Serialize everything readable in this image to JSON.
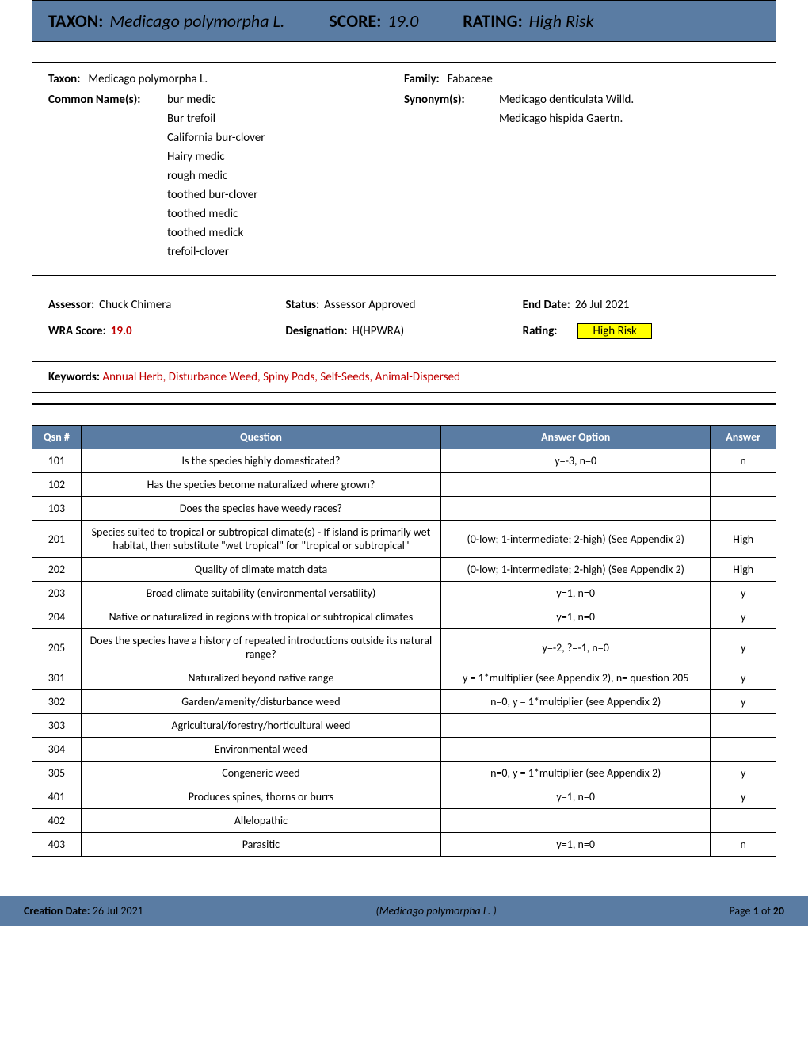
{
  "header": {
    "taxon_label": "TAXON:",
    "taxon_value": "Medicago polymorpha L.",
    "score_label": "SCORE:",
    "score_value": "19.0",
    "rating_label": "RATING:",
    "rating_value": "High Risk"
  },
  "info": {
    "taxon_label": "Taxon:",
    "taxon_value": "Medicago polymorpha L.",
    "family_label": "Family:",
    "family_value": "Fabaceae",
    "common_label": "Common Name(s):",
    "common_names": [
      "bur medic",
      "Bur trefoil",
      "California bur-clover",
      "Hairy medic",
      "rough medic",
      "toothed bur-clover",
      "toothed medic",
      "toothed medick",
      "trefoil-clover"
    ],
    "synonym_label": "Synonym(s):",
    "synonyms": [
      "Medicago denticulata Willd.",
      "Medicago hispida Gaertn."
    ]
  },
  "assess": {
    "assessor_label": "Assessor:",
    "assessor_value": "Chuck Chimera",
    "status_label": "Status:",
    "status_value": "Assessor Approved",
    "end_date_label": "End Date:",
    "end_date_value": "26 Jul 2021",
    "wra_label": "WRA Score:",
    "wra_value": "19.0",
    "designation_label": "Designation:",
    "designation_value": "H(HPWRA)",
    "rating_label": "Rating:",
    "rating_value": "High Risk"
  },
  "keywords": {
    "label": "Keywords:",
    "value": "Annual Herb, Disturbance Weed, Spiny Pods, Self-Seeds, Animal-Dispersed"
  },
  "table": {
    "headers": {
      "qsn": "Qsn #",
      "question": "Question",
      "option": "Answer Option",
      "answer": "Answer"
    },
    "col_widths": {
      "qsn": "60px",
      "question": "420px",
      "option": "330px",
      "answer": "80px"
    },
    "rows": [
      {
        "qsn": "101",
        "question": "Is the species highly domesticated?",
        "option": "y=-3, n=0",
        "answer": "n"
      },
      {
        "qsn": "102",
        "question": "Has the species become naturalized where grown?",
        "option": "",
        "answer": ""
      },
      {
        "qsn": "103",
        "question": "Does the species have weedy races?",
        "option": "",
        "answer": ""
      },
      {
        "qsn": "201",
        "question": "Species suited to tropical or subtropical climate(s) - If island is primarily wet habitat, then substitute \"wet tropical\" for \"tropical or subtropical\"",
        "option": "(0-low; 1-intermediate; 2-high)  (See Appendix 2)",
        "answer": "High"
      },
      {
        "qsn": "202",
        "question": "Quality of climate match data",
        "option": "(0-low; 1-intermediate; 2-high)  (See Appendix 2)",
        "answer": "High"
      },
      {
        "qsn": "203",
        "question": "Broad climate suitability (environmental versatility)",
        "option": "y=1, n=0",
        "answer": "y"
      },
      {
        "qsn": "204",
        "question": "Native or naturalized in regions with tropical or subtropical climates",
        "option": "y=1, n=0",
        "answer": "y"
      },
      {
        "qsn": "205",
        "question": "Does the species have a history of repeated introductions outside its natural range?",
        "option": "y=-2, ?=-1, n=0",
        "answer": "y"
      },
      {
        "qsn": "301",
        "question": "Naturalized beyond native range",
        "option": "y = 1*multiplier (see Appendix 2), n= question 205",
        "answer": "y"
      },
      {
        "qsn": "302",
        "question": "Garden/amenity/disturbance weed",
        "option": "n=0, y = 1*multiplier (see Appendix 2)",
        "answer": "y"
      },
      {
        "qsn": "303",
        "question": "Agricultural/forestry/horticultural weed",
        "option": "",
        "answer": ""
      },
      {
        "qsn": "304",
        "question": "Environmental weed",
        "option": "",
        "answer": ""
      },
      {
        "qsn": "305",
        "question": "Congeneric weed",
        "option": "n=0, y = 1*multiplier (see Appendix 2)",
        "answer": "y"
      },
      {
        "qsn": "401",
        "question": "Produces spines, thorns or burrs",
        "option": "y=1, n=0",
        "answer": "y"
      },
      {
        "qsn": "402",
        "question": "Allelopathic",
        "option": "",
        "answer": ""
      },
      {
        "qsn": "403",
        "question": "Parasitic",
        "option": "y=1, n=0",
        "answer": "n"
      }
    ]
  },
  "footer": {
    "creation_label": "Creation Date:",
    "creation_value": "26 Jul 2021",
    "taxon": "(Medicago polymorpha L. )",
    "page_label": "Page",
    "page_current": "1",
    "page_of": "of",
    "page_total": "20"
  },
  "colors": {
    "header_bg": "#5a7ca3",
    "highlight": "#ffff00",
    "red": "#c00000"
  }
}
